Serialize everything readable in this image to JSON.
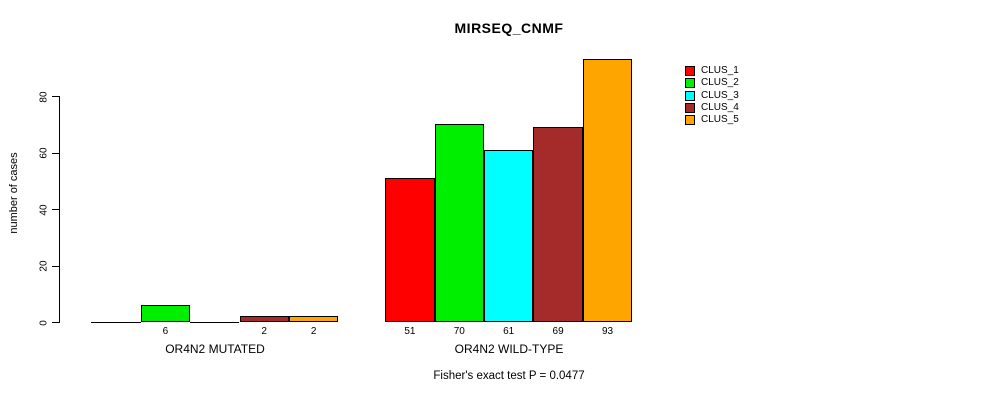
{
  "title": "MIRSEQ_CNMF",
  "y_axis": {
    "label": "number of cases",
    "tick_labels": [
      "0",
      "20",
      "40",
      "60",
      "80"
    ]
  },
  "footer": {
    "stat_test": "Fisher's exact test P = 0.0477"
  },
  "legend": {
    "entries": [
      {
        "label": "CLUS_1",
        "color": "#FF0000"
      },
      {
        "label": "CLUS_2",
        "color": "#00EE00"
      },
      {
        "label": "CLUS_3",
        "color": "#00FFFF"
      },
      {
        "label": "CLUS_4",
        "color": "#A52A2A"
      },
      {
        "label": "CLUS_5",
        "color": "#FFA500"
      }
    ]
  },
  "chart_data": {
    "type": "bar",
    "title": "MIRSEQ_CNMF",
    "xlabel": "",
    "ylabel": "number of cases",
    "ylim": [
      0,
      93
    ],
    "yticks": [
      0,
      20,
      40,
      60,
      80
    ],
    "grid": false,
    "legend_position": "right",
    "categories": [
      "OR4N2 MUTATED",
      "OR4N2 WILD-TYPE"
    ],
    "series": [
      {
        "name": "CLUS_1",
        "color": "#FF0000",
        "values": [
          0,
          51
        ]
      },
      {
        "name": "CLUS_2",
        "color": "#00EE00",
        "values": [
          6,
          70
        ]
      },
      {
        "name": "CLUS_3",
        "color": "#00FFFF",
        "values": [
          0,
          61
        ]
      },
      {
        "name": "CLUS_4",
        "color": "#A52A2A",
        "values": [
          2,
          69
        ]
      },
      {
        "name": "CLUS_5",
        "color": "#FFA500",
        "values": [
          2,
          93
        ]
      }
    ],
    "bar_value_labels": [
      [
        "",
        "6",
        "",
        "2",
        "2"
      ],
      [
        "51",
        "70",
        "61",
        "69",
        "93"
      ]
    ],
    "annotation": "Fisher's exact test P = 0.0477"
  }
}
